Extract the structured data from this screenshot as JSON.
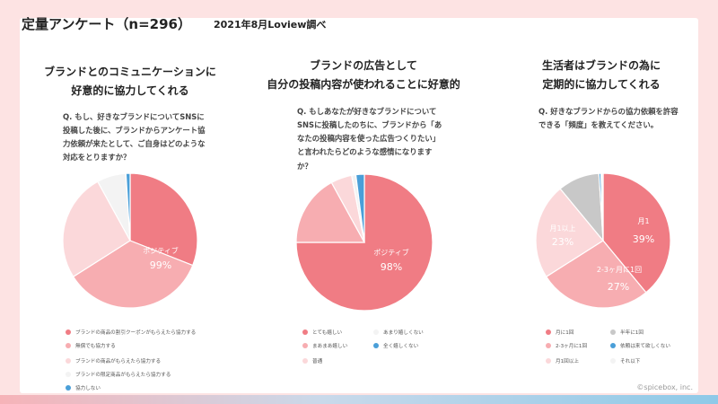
{
  "header": {
    "title": "定量アンケート（n=296）",
    "survey_info": "2021年8月Loview調べ"
  },
  "colors": {
    "red": "#f07c84",
    "pink": "#f7adb1",
    "light_pink": "#fbd8da",
    "pale": "#f3f3f3",
    "blue": "#4a9fd8",
    "gray": "#c8c8c8"
  },
  "chart_data": [
    {
      "type": "pie",
      "title_lines": [
        "ブランドとのコミュニケーションに",
        "好意的に協力してくれる"
      ],
      "question": "Q. もし、好きなブランドについてSNSに\n投稿した後に、ブランドからアンケート協\n力依頼が来たとして、ご自身はどのような\n対応をとりますか？",
      "slices": [
        {
          "label": "ブランドの商品の割引クーポンがもらえたら協力する",
          "value": 31,
          "color": "#f07c84"
        },
        {
          "label": "無償でも協力する",
          "value": 35,
          "color": "#f7adb1"
        },
        {
          "label": "ブランドの商品がもらえたら協力する",
          "value": 26,
          "color": "#fbd8da"
        },
        {
          "label": "ブランドの限定商品がもらえたら協力する",
          "value": 7,
          "color": "#f3f3f3"
        },
        {
          "label": "協力しない",
          "value": 1,
          "color": "#4a9fd8"
        }
      ],
      "annotations": [
        {
          "text": "ポジティブ",
          "slice": 0
        },
        {
          "text": "99%",
          "slice": 0
        }
      ]
    },
    {
      "type": "pie",
      "title_lines": [
        "ブランドの広告として",
        "自分の投稿内容が使われることに好意的"
      ],
      "question": "Q. もしあなたが好きなブランドについて\nSNSに投稿したのちに、ブランドから「あ\nなたの投稿内容を使った広告つくりたい」\nと言われたらどのような感情になります\nか？",
      "slices": [
        {
          "label": "とても嬉しい",
          "value": 75,
          "color": "#f07c84"
        },
        {
          "label": "まあまあ嬉しい",
          "value": 17,
          "color": "#f7adb1"
        },
        {
          "label": "普通",
          "value": 5,
          "color": "#fbd8da"
        },
        {
          "label": "あまり嬉しくない",
          "value": 1,
          "color": "#f3f3f3"
        },
        {
          "label": "全く嬉しくない",
          "value": 2,
          "color": "#4a9fd8"
        }
      ],
      "annotations": [
        {
          "text": "ポジティブ",
          "slice": 0
        },
        {
          "text": "98%",
          "slice": 0
        }
      ]
    },
    {
      "type": "pie",
      "title_lines": [
        "生活者はブランドの為に",
        "定期的に協力してくれる"
      ],
      "question": "Q. 好きなブランドからの協力依頼を許容\nできる「頻度」を教えてください。",
      "slices": [
        {
          "label": "月に1回",
          "value": 39,
          "color": "#f07c84",
          "data_label": "月1",
          "pct": "39%"
        },
        {
          "label": "2-3ヶ月に1回",
          "value": 27,
          "color": "#f7adb1",
          "data_label": "2-3ヶ月に1回",
          "pct": "27%"
        },
        {
          "label": "月1回以上",
          "value": 23,
          "color": "#fbd8da",
          "data_label": "月1以上",
          "pct": "23%"
        },
        {
          "label": "半年に1回",
          "value": 10,
          "color": "#c8c8c8"
        },
        {
          "label": "依頼は来て欲しくない",
          "value": 0.5,
          "color": "#4a9fd8"
        },
        {
          "label": "それ以下",
          "value": 0.5,
          "color": "#f3f3f3"
        }
      ]
    }
  ],
  "footer": {
    "copyright": "©spicebox, inc."
  }
}
